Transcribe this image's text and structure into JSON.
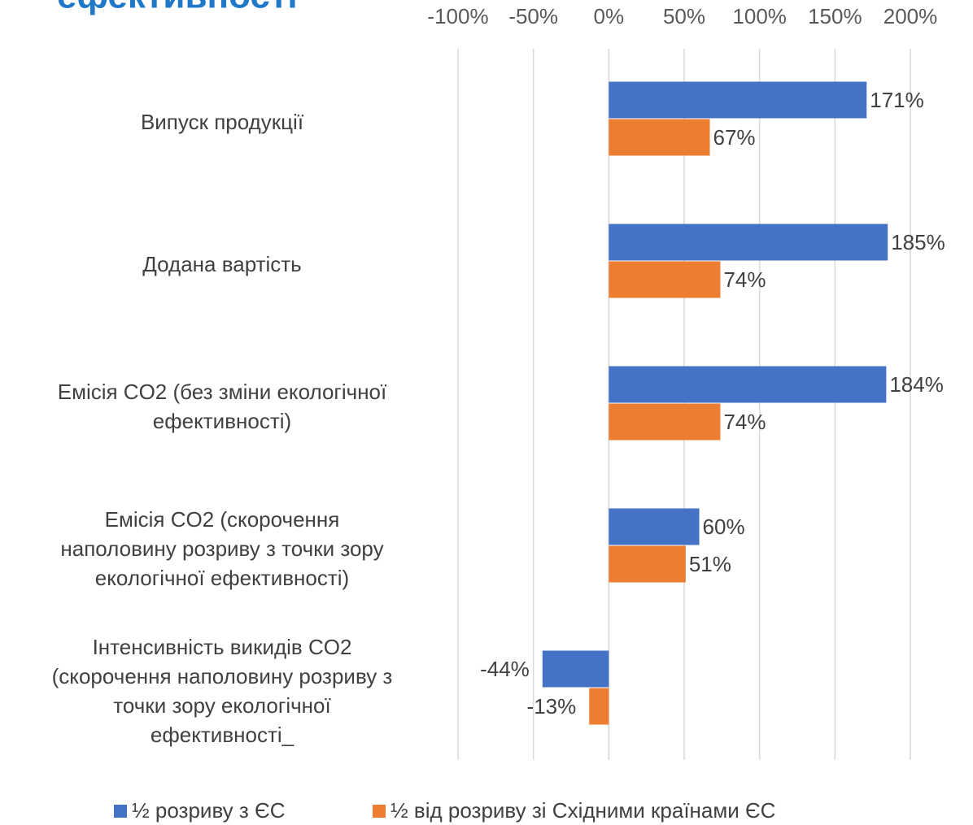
{
  "chart_data": {
    "type": "bar",
    "orientation": "horizontal",
    "title": "ефективності",
    "categories": [
      "Випуск продукції",
      "Додана вартість",
      "Емісія CO2 (без зміни екологічної\nефективності)",
      "Емісія CO2 (скорочення\nнаполовину розриву з точки зору\nекологічної ефективності)",
      "Інтенсивність викидів CO2\n(скорочення наполовину розриву з\nточки зору екологічної\nефективності_"
    ],
    "series": [
      {
        "name": "½ розриву з ЄС",
        "color": "#4472c4",
        "values": [
          171,
          185,
          184,
          60,
          -44
        ],
        "value_labels": [
          "171%",
          "185%",
          "184%",
          "60%",
          "-44%"
        ]
      },
      {
        "name": "½ від розриву зі Східними країнами ЄС",
        "color": "#ed7d31",
        "values": [
          67,
          74,
          74,
          51,
          -13
        ],
        "value_labels": [
          "67%",
          "74%",
          "74%",
          "51%",
          "-13%"
        ]
      }
    ],
    "xlim": [
      -100,
      200
    ],
    "xticks": [
      {
        "value": -100,
        "label": "-100%"
      },
      {
        "value": -50,
        "label": "-50%"
      },
      {
        "value": 0,
        "label": "0%"
      },
      {
        "value": 50,
        "label": "50%"
      },
      {
        "value": 100,
        "label": "100%"
      },
      {
        "value": 150,
        "label": "150%"
      },
      {
        "value": 200,
        "label": "200%"
      }
    ],
    "grid": true,
    "legend": "bottom"
  }
}
